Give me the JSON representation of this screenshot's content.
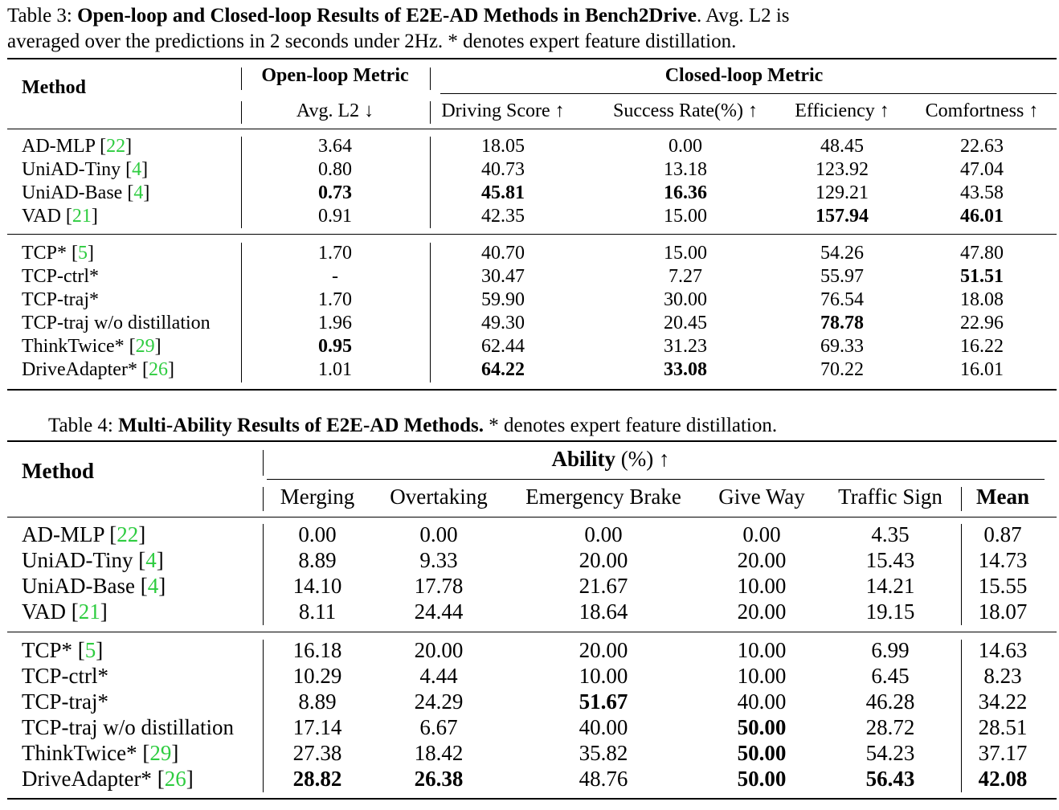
{
  "table3": {
    "caption_label": "Table 3:",
    "caption_title": "Open-loop and Closed-loop Results of E2E-AD Methods in Bench2Drive",
    "caption_rest_line1": ". Avg. L2 is",
    "caption_line2": "averaged over the predictions in 2 seconds under 2Hz. * denotes expert feature distillation.",
    "method_header": "Method",
    "group_open": "Open-loop Metric",
    "group_closed": "Closed-loop Metric",
    "columns": [
      "Avg. L2 ↓",
      "Driving Score ↑",
      "Success Rate(%) ↑",
      "Efficiency ↑",
      "Comfortness ↑"
    ],
    "rows": [
      {
        "name": "AD-MLP",
        "ref": "22",
        "cells": [
          [
            "3.64",
            0
          ],
          [
            "18.05",
            0
          ],
          [
            "0.00",
            0
          ],
          [
            "48.45",
            0
          ],
          [
            "22.63",
            0
          ]
        ]
      },
      {
        "name": "UniAD-Tiny",
        "ref": "4",
        "cells": [
          [
            "0.80",
            0
          ],
          [
            "40.73",
            0
          ],
          [
            "13.18",
            0
          ],
          [
            "123.92",
            0
          ],
          [
            "47.04",
            0
          ]
        ]
      },
      {
        "name": "UniAD-Base",
        "ref": "4",
        "cells": [
          [
            "0.73",
            1
          ],
          [
            "45.81",
            1
          ],
          [
            "16.36",
            1
          ],
          [
            "129.21",
            0
          ],
          [
            "43.58",
            0
          ]
        ]
      },
      {
        "name": "VAD",
        "ref": "21",
        "cells": [
          [
            "0.91",
            0
          ],
          [
            "42.35",
            0
          ],
          [
            "15.00",
            0
          ],
          [
            "157.94",
            1
          ],
          [
            "46.01",
            1
          ]
        ]
      },
      {
        "name": "TCP*",
        "ref": "5",
        "cells": [
          [
            "1.70",
            0
          ],
          [
            "40.70",
            0
          ],
          [
            "15.00",
            0
          ],
          [
            "54.26",
            0
          ],
          [
            "47.80",
            0
          ]
        ]
      },
      {
        "name": "TCP-ctrl*",
        "ref": "",
        "cells": [
          [
            "-",
            0
          ],
          [
            "30.47",
            0
          ],
          [
            "7.27",
            0
          ],
          [
            "55.97",
            0
          ],
          [
            "51.51",
            1
          ]
        ]
      },
      {
        "name": "TCP-traj*",
        "ref": "",
        "cells": [
          [
            "1.70",
            0
          ],
          [
            "59.90",
            0
          ],
          [
            "30.00",
            0
          ],
          [
            "76.54",
            0
          ],
          [
            "18.08",
            0
          ]
        ]
      },
      {
        "name": "TCP-traj w/o distillation",
        "ref": "",
        "cells": [
          [
            "1.96",
            0
          ],
          [
            "49.30",
            0
          ],
          [
            "20.45",
            0
          ],
          [
            "78.78",
            1
          ],
          [
            "22.96",
            0
          ]
        ]
      },
      {
        "name": "ThinkTwice*",
        "ref": "29",
        "cells": [
          [
            "0.95",
            1
          ],
          [
            "62.44",
            0
          ],
          [
            "31.23",
            0
          ],
          [
            "69.33",
            0
          ],
          [
            "16.22",
            0
          ]
        ]
      },
      {
        "name": "DriveAdapter*",
        "ref": "26",
        "cells": [
          [
            "1.01",
            0
          ],
          [
            "64.22",
            1
          ],
          [
            "33.08",
            1
          ],
          [
            "70.22",
            0
          ],
          [
            "16.01",
            0
          ]
        ]
      }
    ]
  },
  "table4": {
    "caption_label": "Table 4:",
    "caption_title": "Multi-Ability Results of E2E-AD Methods.",
    "caption_rest": "* denotes expert feature distillation.",
    "method_header": "Method",
    "group_ability": "Ability",
    "group_ability_rest": "(%) ↑",
    "columns": [
      "Merging",
      "Overtaking",
      "Emergency Brake",
      "Give Way",
      "Traffic Sign",
      "Mean"
    ],
    "rows": [
      {
        "name": "AD-MLP",
        "ref": "22",
        "cells": [
          [
            "0.00",
            0
          ],
          [
            "0.00",
            0
          ],
          [
            "0.00",
            0
          ],
          [
            "0.00",
            0
          ],
          [
            "4.35",
            0
          ],
          [
            "0.87",
            0
          ]
        ]
      },
      {
        "name": "UniAD-Tiny",
        "ref": "4",
        "cells": [
          [
            "8.89",
            0
          ],
          [
            "9.33",
            0
          ],
          [
            "20.00",
            0
          ],
          [
            "20.00",
            0
          ],
          [
            "15.43",
            0
          ],
          [
            "14.73",
            0
          ]
        ]
      },
      {
        "name": "UniAD-Base",
        "ref": "4",
        "cells": [
          [
            "14.10",
            0
          ],
          [
            "17.78",
            0
          ],
          [
            "21.67",
            0
          ],
          [
            "10.00",
            0
          ],
          [
            "14.21",
            0
          ],
          [
            "15.55",
            0
          ]
        ]
      },
      {
        "name": "VAD",
        "ref": "21",
        "cells": [
          [
            "8.11",
            0
          ],
          [
            "24.44",
            0
          ],
          [
            "18.64",
            0
          ],
          [
            "20.00",
            0
          ],
          [
            "19.15",
            0
          ],
          [
            "18.07",
            0
          ]
        ]
      },
      {
        "name": "TCP*",
        "ref": "5",
        "cells": [
          [
            "16.18",
            0
          ],
          [
            "20.00",
            0
          ],
          [
            "20.00",
            0
          ],
          [
            "10.00",
            0
          ],
          [
            "6.99",
            0
          ],
          [
            "14.63",
            0
          ]
        ]
      },
      {
        "name": "TCP-ctrl*",
        "ref": "",
        "cells": [
          [
            "10.29",
            0
          ],
          [
            "4.44",
            0
          ],
          [
            "10.00",
            0
          ],
          [
            "10.00",
            0
          ],
          [
            "6.45",
            0
          ],
          [
            "8.23",
            0
          ]
        ]
      },
      {
        "name": "TCP-traj*",
        "ref": "",
        "cells": [
          [
            "8.89",
            0
          ],
          [
            "24.29",
            0
          ],
          [
            "51.67",
            1
          ],
          [
            "40.00",
            0
          ],
          [
            "46.28",
            0
          ],
          [
            "34.22",
            0
          ]
        ]
      },
      {
        "name": "TCP-traj w/o distillation",
        "ref": "",
        "cells": [
          [
            "17.14",
            0
          ],
          [
            "6.67",
            0
          ],
          [
            "40.00",
            0
          ],
          [
            "50.00",
            1
          ],
          [
            "28.72",
            0
          ],
          [
            "28.51",
            0
          ]
        ]
      },
      {
        "name": "ThinkTwice*",
        "ref": "29",
        "cells": [
          [
            "27.38",
            0
          ],
          [
            "18.42",
            0
          ],
          [
            "35.82",
            0
          ],
          [
            "50.00",
            1
          ],
          [
            "54.23",
            0
          ],
          [
            "37.17",
            0
          ]
        ]
      },
      {
        "name": "DriveAdapter*",
        "ref": "26",
        "cells": [
          [
            "28.82",
            1
          ],
          [
            "26.38",
            1
          ],
          [
            "48.76",
            0
          ],
          [
            "50.00",
            1
          ],
          [
            "56.43",
            1
          ],
          [
            "42.08",
            1
          ]
        ]
      }
    ]
  }
}
